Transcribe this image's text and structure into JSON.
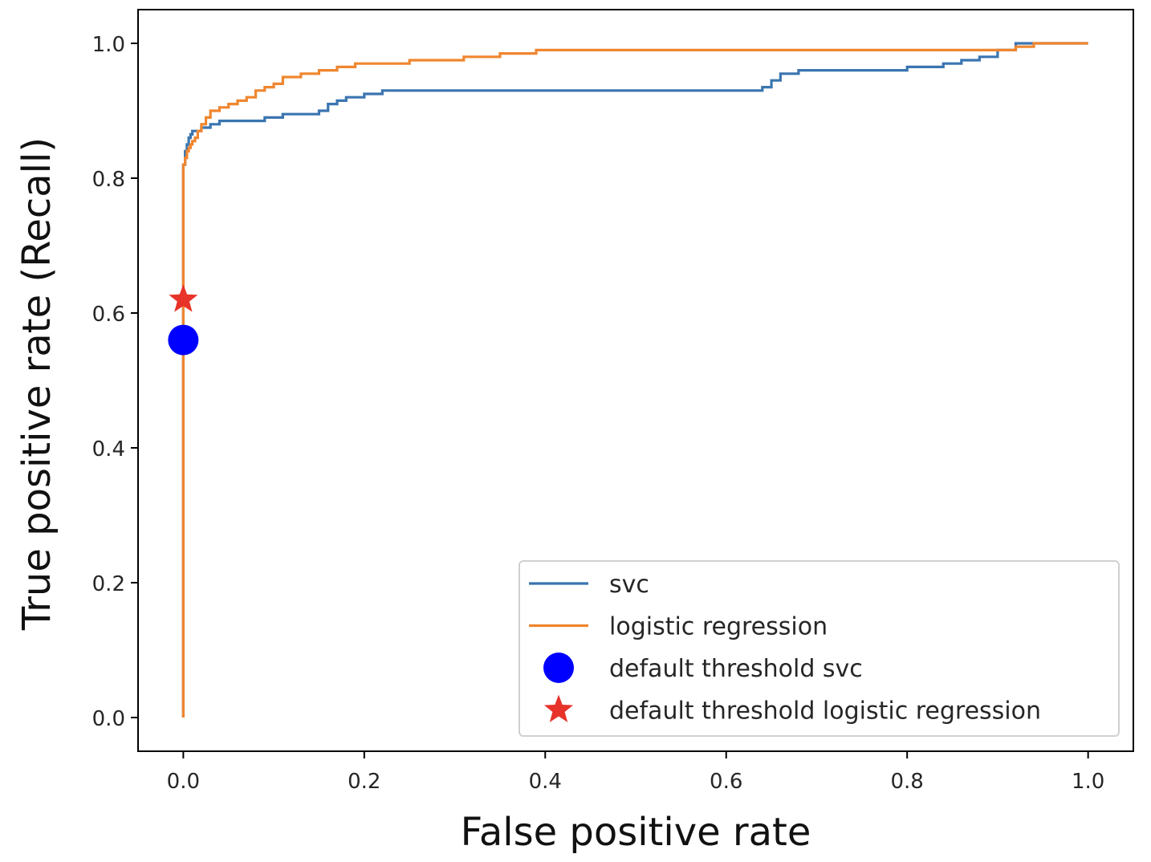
{
  "chart_data": {
    "type": "line",
    "title": "",
    "xlabel": "False positive rate",
    "ylabel": "True positive rate (Recall)",
    "xlim": [
      -0.05,
      1.05
    ],
    "ylim": [
      -0.05,
      1.05
    ],
    "xticks": [
      0.0,
      0.2,
      0.4,
      0.6,
      0.8,
      1.0
    ],
    "yticks": [
      0.0,
      0.2,
      0.4,
      0.6,
      0.8,
      1.0
    ],
    "xtick_labels": [
      "0.0",
      "0.2",
      "0.4",
      "0.6",
      "0.8",
      "1.0"
    ],
    "ytick_labels": [
      "0.0",
      "0.2",
      "0.4",
      "0.6",
      "0.8",
      "1.0"
    ],
    "grid": false,
    "legend_position": "lower-right",
    "series": [
      {
        "name": "svc",
        "kind": "step",
        "color": "#3a75b0",
        "x": [
          0.0,
          0.0,
          0.002,
          0.004,
          0.006,
          0.008,
          0.01,
          0.02,
          0.03,
          0.04,
          0.09,
          0.11,
          0.15,
          0.16,
          0.17,
          0.18,
          0.2,
          0.22,
          0.25,
          0.4,
          0.6,
          0.64,
          0.65,
          0.66,
          0.68,
          0.7,
          0.8,
          0.84,
          0.86,
          0.88,
          0.9,
          0.92,
          0.95,
          1.0
        ],
        "y": [
          0.0,
          0.82,
          0.84,
          0.85,
          0.86,
          0.865,
          0.87,
          0.875,
          0.88,
          0.885,
          0.89,
          0.895,
          0.9,
          0.91,
          0.915,
          0.92,
          0.925,
          0.93,
          0.93,
          0.93,
          0.93,
          0.935,
          0.945,
          0.955,
          0.96,
          0.96,
          0.965,
          0.97,
          0.975,
          0.98,
          0.99,
          1.0,
          1.0,
          1.0
        ]
      },
      {
        "name": "logistic regression",
        "kind": "step",
        "color": "#f0862f",
        "x": [
          0.0,
          0.0,
          0.002,
          0.004,
          0.006,
          0.008,
          0.01,
          0.013,
          0.016,
          0.02,
          0.025,
          0.03,
          0.04,
          0.05,
          0.06,
          0.07,
          0.08,
          0.09,
          0.1,
          0.11,
          0.13,
          0.15,
          0.17,
          0.19,
          0.21,
          0.25,
          0.31,
          0.35,
          0.39,
          0.45,
          0.6,
          0.8,
          0.92,
          0.94,
          1.0
        ],
        "y": [
          0.0,
          0.82,
          0.83,
          0.84,
          0.845,
          0.85,
          0.855,
          0.86,
          0.87,
          0.88,
          0.89,
          0.9,
          0.905,
          0.91,
          0.915,
          0.92,
          0.93,
          0.935,
          0.94,
          0.95,
          0.955,
          0.96,
          0.965,
          0.97,
          0.97,
          0.975,
          0.98,
          0.985,
          0.99,
          0.99,
          0.99,
          0.99,
          0.995,
          1.0,
          1.0
        ]
      }
    ],
    "markers": [
      {
        "name": "default threshold svc",
        "shape": "circle",
        "color": "#0000ff",
        "x": 0.0,
        "y": 0.56
      },
      {
        "name": "default threshold logistic regression",
        "shape": "star",
        "color": "#e8332a",
        "x": 0.0,
        "y": 0.62
      }
    ],
    "legend": [
      {
        "label": "svc",
        "type": "line",
        "color": "#3a75b0"
      },
      {
        "label": "logistic regression",
        "type": "line",
        "color": "#f0862f"
      },
      {
        "label": "default threshold svc",
        "type": "circle",
        "color": "#0000ff"
      },
      {
        "label": "default threshold logistic regression",
        "type": "star",
        "color": "#e8332a"
      }
    ]
  }
}
